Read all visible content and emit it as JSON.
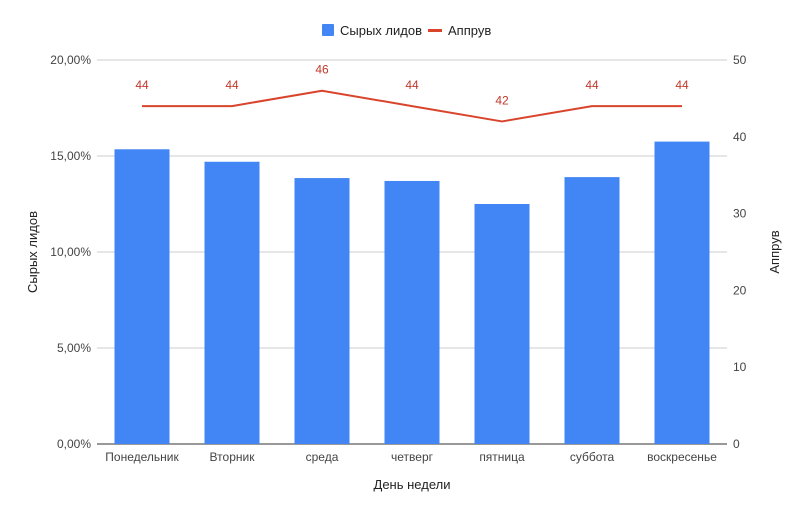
{
  "chart_data": {
    "type": "bar",
    "categories": [
      "Понедельник",
      "Вторник",
      "среда",
      "четверг",
      "пятница",
      "суббота",
      "воскресенье"
    ],
    "series": [
      {
        "name": "Сырых лидов",
        "type": "bar",
        "axis": "left",
        "color": "#4285f4",
        "values": [
          15.35,
          14.7,
          13.85,
          13.7,
          12.5,
          13.9,
          15.75
        ]
      },
      {
        "name": "Аппрув",
        "type": "line",
        "axis": "right",
        "color": "#d9442c",
        "values": [
          44,
          44,
          46,
          44,
          42,
          44,
          44
        ],
        "data_labels": [
          "44",
          "44",
          "46",
          "44",
          "42",
          "44",
          "44"
        ]
      }
    ],
    "xlabel": "День недели",
    "ylabel_left": "Сырых лидов",
    "ylabel_right": "Аппрув",
    "ylim_left": [
      0,
      20
    ],
    "ylim_right": [
      0,
      50
    ],
    "left_ticks": [
      "0,00%",
      "5,00%",
      "10,00%",
      "15,00%",
      "20,00%"
    ],
    "right_ticks": [
      "0",
      "10",
      "20",
      "30",
      "40",
      "50"
    ],
    "grid": true,
    "legend_position": "top-center"
  }
}
